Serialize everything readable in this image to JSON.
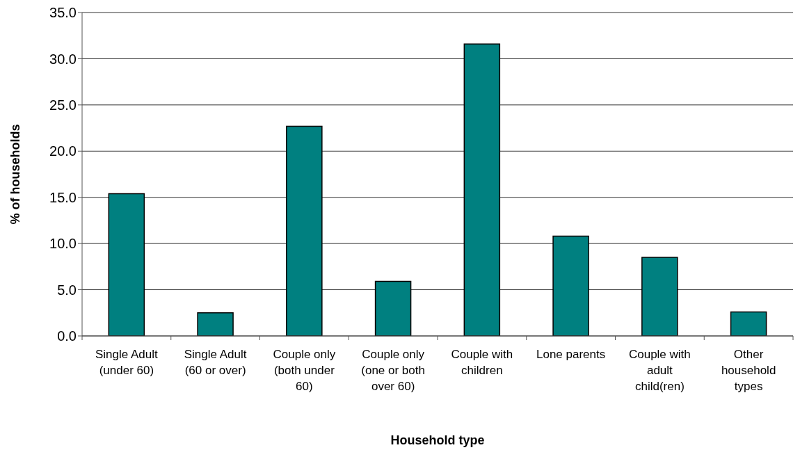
{
  "chart_data": {
    "type": "bar",
    "xlabel": "Household type",
    "ylabel": "% of households",
    "categories": [
      "Single Adult (under 60)",
      "Single Adult (60 or over)",
      "Couple only (both under 60)",
      "Couple only (one or both over 60)",
      "Couple with children",
      "Lone parents",
      "Couple with adult child(ren)",
      "Other household types"
    ],
    "values": [
      15.4,
      2.5,
      22.7,
      5.9,
      31.6,
      10.8,
      8.5,
      2.6
    ],
    "color": "#008080",
    "ylim": [
      0,
      35
    ],
    "yticks": [
      {
        "value": 0,
        "label": "0.0"
      },
      {
        "value": 5,
        "label": "5.0"
      },
      {
        "value": 10,
        "label": "10.0"
      },
      {
        "value": 15,
        "label": "15.0"
      },
      {
        "value": 20,
        "label": "20.0"
      },
      {
        "value": 25,
        "label": "25.0"
      },
      {
        "value": 30,
        "label": "30.0"
      },
      {
        "value": 35,
        "label": "35.0"
      }
    ],
    "grid": "y"
  }
}
